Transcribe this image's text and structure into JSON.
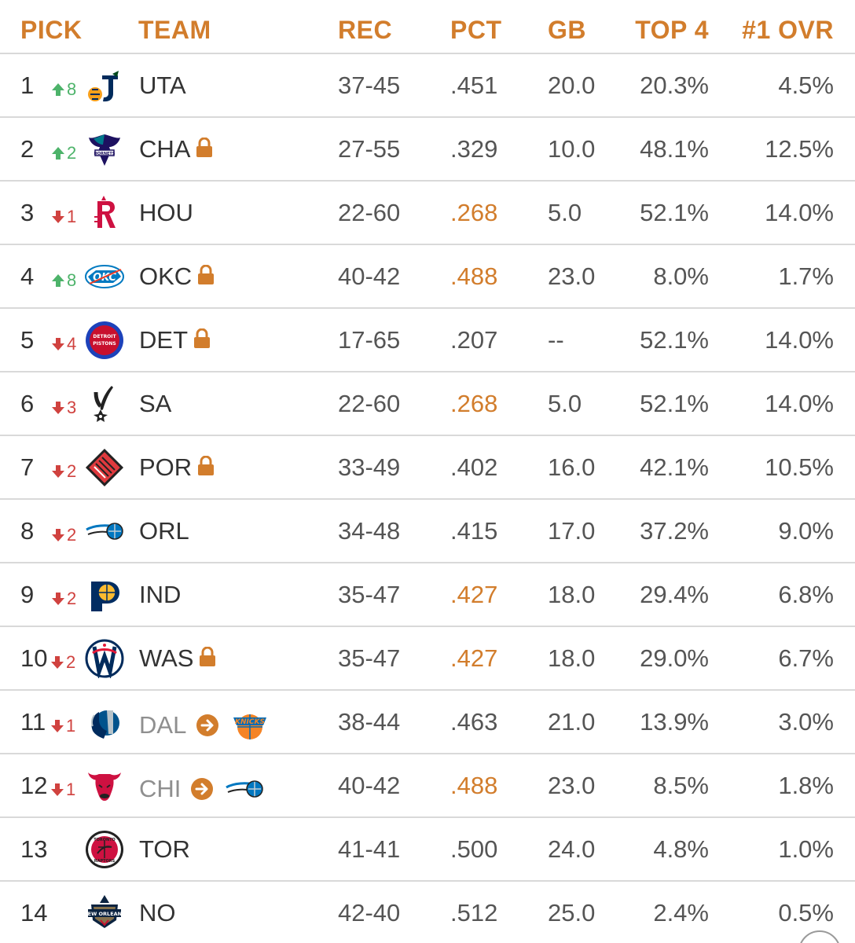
{
  "headers": {
    "pick": "PICK",
    "team": "TEAM",
    "rec": "REC",
    "pct": "PCT",
    "gb": "GB",
    "top4": "TOP 4",
    "ovr": "#1 OVR"
  },
  "colors": {
    "accent": "#d27d2c",
    "up": "#4db36a",
    "down": "#d0423f",
    "divider": "#d9d9d9"
  },
  "rows": [
    {
      "pick": "1",
      "move_dir": "up",
      "move": "8",
      "team": "UTA",
      "logo": "jazz-logo-icon",
      "lock": false,
      "rec": "37-45",
      "pct": ".451",
      "pct_hl": false,
      "gb": "20.0",
      "top4": "20.3%",
      "ovr": "4.5%"
    },
    {
      "pick": "2",
      "move_dir": "up",
      "move": "2",
      "team": "CHA",
      "logo": "hornets-logo-icon",
      "lock": true,
      "rec": "27-55",
      "pct": ".329",
      "pct_hl": false,
      "gb": "10.0",
      "top4": "48.1%",
      "ovr": "12.5%"
    },
    {
      "pick": "3",
      "move_dir": "down",
      "move": "1",
      "team": "HOU",
      "logo": "rockets-logo-icon",
      "lock": false,
      "rec": "22-60",
      "pct": ".268",
      "pct_hl": true,
      "gb": "5.0",
      "top4": "52.1%",
      "ovr": "14.0%"
    },
    {
      "pick": "4",
      "move_dir": "up",
      "move": "8",
      "team": "OKC",
      "logo": "thunder-logo-icon",
      "lock": true,
      "rec": "40-42",
      "pct": ".488",
      "pct_hl": true,
      "gb": "23.0",
      "top4": "8.0%",
      "ovr": "1.7%"
    },
    {
      "pick": "5",
      "move_dir": "down",
      "move": "4",
      "team": "DET",
      "logo": "pistons-logo-icon",
      "lock": true,
      "rec": "17-65",
      "pct": ".207",
      "pct_hl": false,
      "gb": "--",
      "top4": "52.1%",
      "ovr": "14.0%"
    },
    {
      "pick": "6",
      "move_dir": "down",
      "move": "3",
      "team": "SA",
      "logo": "spurs-logo-icon",
      "lock": false,
      "rec": "22-60",
      "pct": ".268",
      "pct_hl": true,
      "gb": "5.0",
      "top4": "52.1%",
      "ovr": "14.0%"
    },
    {
      "pick": "7",
      "move_dir": "down",
      "move": "2",
      "team": "POR",
      "logo": "blazers-logo-icon",
      "lock": true,
      "rec": "33-49",
      "pct": ".402",
      "pct_hl": false,
      "gb": "16.0",
      "top4": "42.1%",
      "ovr": "10.5%"
    },
    {
      "pick": "8",
      "move_dir": "down",
      "move": "2",
      "team": "ORL",
      "logo": "magic-logo-icon",
      "lock": false,
      "rec": "34-48",
      "pct": ".415",
      "pct_hl": false,
      "gb": "17.0",
      "top4": "37.2%",
      "ovr": "9.0%"
    },
    {
      "pick": "9",
      "move_dir": "down",
      "move": "2",
      "team": "IND",
      "logo": "pacers-logo-icon",
      "lock": false,
      "rec": "35-47",
      "pct": ".427",
      "pct_hl": true,
      "gb": "18.0",
      "top4": "29.4%",
      "ovr": "6.8%"
    },
    {
      "pick": "10",
      "move_dir": "down",
      "move": "2",
      "team": "WAS",
      "logo": "wizards-logo-icon",
      "lock": true,
      "rec": "35-47",
      "pct": ".427",
      "pct_hl": true,
      "gb": "18.0",
      "top4": "29.0%",
      "ovr": "6.7%"
    },
    {
      "pick": "11",
      "move_dir": "down",
      "move": "1",
      "team": "DAL",
      "logo": "mavericks-logo-icon",
      "lock": false,
      "traded_to": "knicks-logo-icon",
      "rec": "38-44",
      "pct": ".463",
      "pct_hl": false,
      "gb": "21.0",
      "top4": "13.9%",
      "ovr": "3.0%"
    },
    {
      "pick": "12",
      "move_dir": "down",
      "move": "1",
      "team": "CHI",
      "logo": "bulls-logo-icon",
      "lock": false,
      "traded_to": "magic-logo-icon",
      "rec": "40-42",
      "pct": ".488",
      "pct_hl": true,
      "gb": "23.0",
      "top4": "8.5%",
      "ovr": "1.8%"
    },
    {
      "pick": "13",
      "move_dir": "none",
      "move": "",
      "team": "TOR",
      "logo": "raptors-logo-icon",
      "lock": false,
      "rec": "41-41",
      "pct": ".500",
      "pct_hl": false,
      "gb": "24.0",
      "top4": "4.8%",
      "ovr": "1.0%"
    },
    {
      "pick": "14",
      "move_dir": "none",
      "move": "",
      "team": "NO",
      "logo": "pelicans-logo-icon",
      "lock": false,
      "rec": "42-40",
      "pct": ".512",
      "pct_hl": false,
      "gb": "25.0",
      "top4": "2.4%",
      "ovr": "0.5%"
    }
  ]
}
